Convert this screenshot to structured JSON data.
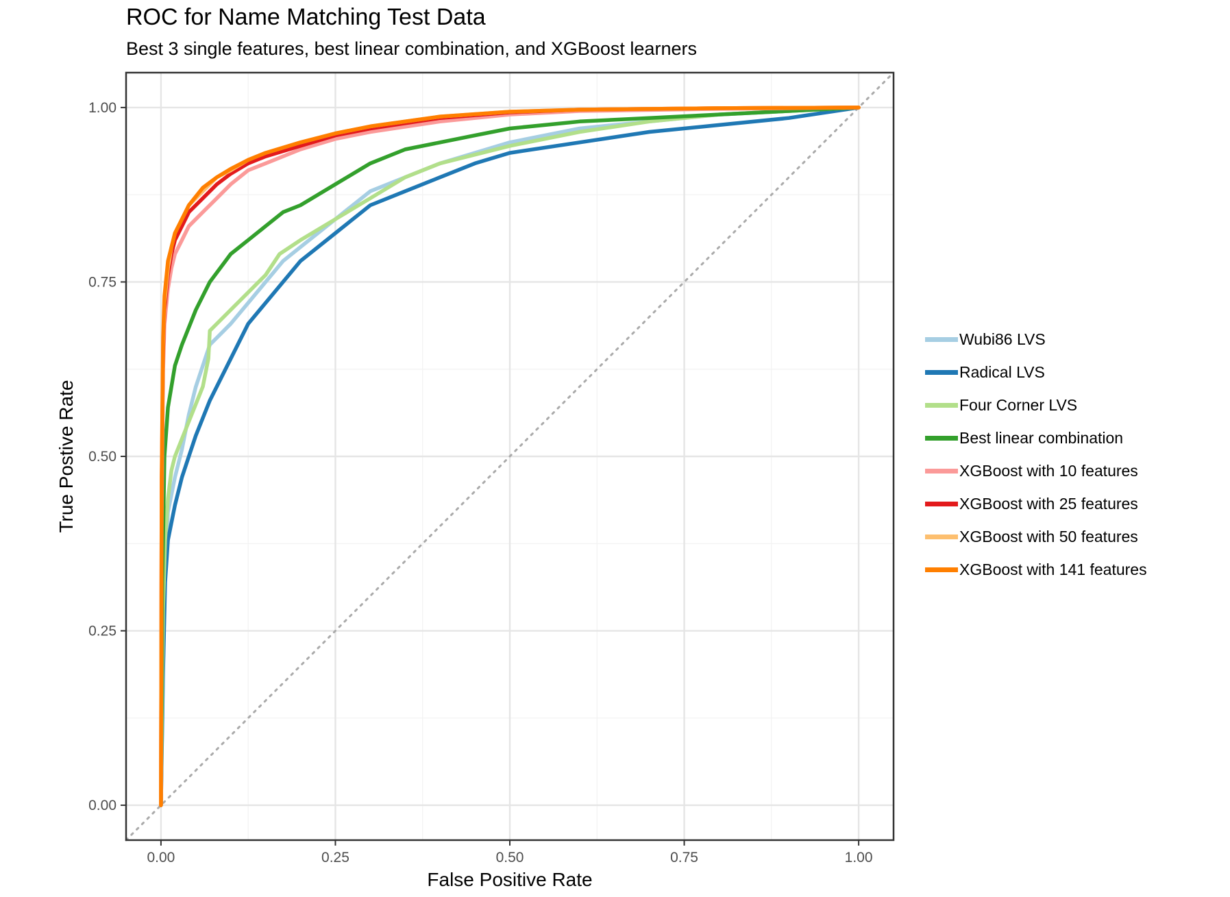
{
  "chart_data": {
    "type": "line",
    "title": "ROC for Name Matching Test Data",
    "subtitle": "Best 3 single features, best linear combination, and XGBoost learners",
    "xlabel": "False Positive Rate",
    "ylabel": "True Postive Rate",
    "xlim": [
      -0.05,
      1.05
    ],
    "ylim": [
      -0.05,
      1.05
    ],
    "x_ticks": [
      "0.00",
      "0.25",
      "0.50",
      "0.75",
      "1.00"
    ],
    "y_ticks": [
      "0.00",
      "0.25",
      "0.50",
      "0.75",
      "1.00"
    ],
    "grid": true,
    "legend_position": "right",
    "diagonal_reference": {
      "from": [
        -0.05,
        -0.05
      ],
      "to": [
        1.05,
        1.05
      ],
      "style": "dotted",
      "color": "#aaaaaa"
    },
    "series": [
      {
        "name": "Wubi86 LVS",
        "color": "#a6cee3",
        "x": [
          0,
          0.003,
          0.006,
          0.01,
          0.02,
          0.03,
          0.04,
          0.05,
          0.06,
          0.07,
          0.08,
          0.1,
          0.125,
          0.15,
          0.175,
          0.2,
          0.25,
          0.3,
          0.35,
          0.4,
          0.5,
          0.6,
          0.7,
          0.8,
          0.9,
          1.0
        ],
        "y": [
          0,
          0.2,
          0.33,
          0.42,
          0.47,
          0.51,
          0.56,
          0.6,
          0.63,
          0.66,
          0.67,
          0.69,
          0.72,
          0.75,
          0.78,
          0.8,
          0.84,
          0.88,
          0.9,
          0.92,
          0.95,
          0.97,
          0.98,
          0.99,
          0.995,
          1.0
        ]
      },
      {
        "name": "Radical LVS",
        "color": "#1f78b4",
        "x": [
          0,
          0.003,
          0.006,
          0.01,
          0.02,
          0.03,
          0.04,
          0.05,
          0.07,
          0.1,
          0.125,
          0.15,
          0.2,
          0.25,
          0.3,
          0.35,
          0.4,
          0.45,
          0.5,
          0.6,
          0.7,
          0.8,
          0.9,
          1.0
        ],
        "y": [
          0,
          0.19,
          0.32,
          0.38,
          0.43,
          0.47,
          0.5,
          0.53,
          0.58,
          0.64,
          0.69,
          0.72,
          0.78,
          0.82,
          0.86,
          0.88,
          0.9,
          0.92,
          0.935,
          0.95,
          0.965,
          0.975,
          0.985,
          1.0
        ]
      },
      {
        "name": "Four Corner LVS",
        "color": "#b2df8a",
        "x": [
          0,
          0.003,
          0.006,
          0.01,
          0.015,
          0.02,
          0.04,
          0.06,
          0.068,
          0.07,
          0.1,
          0.15,
          0.17,
          0.2,
          0.25,
          0.3,
          0.35,
          0.4,
          0.5,
          0.6,
          0.7,
          0.8,
          0.9,
          1.0
        ],
        "y": [
          0,
          0.28,
          0.38,
          0.44,
          0.48,
          0.5,
          0.55,
          0.6,
          0.64,
          0.68,
          0.71,
          0.76,
          0.79,
          0.81,
          0.84,
          0.87,
          0.9,
          0.92,
          0.945,
          0.965,
          0.98,
          0.99,
          0.995,
          1.0
        ]
      },
      {
        "name": "Best linear combination",
        "color": "#33a02c",
        "x": [
          0,
          0.002,
          0.005,
          0.01,
          0.02,
          0.03,
          0.05,
          0.07,
          0.1,
          0.125,
          0.15,
          0.175,
          0.2,
          0.25,
          0.3,
          0.35,
          0.4,
          0.45,
          0.5,
          0.6,
          0.7,
          0.8,
          0.9,
          1.0
        ],
        "y": [
          0,
          0.32,
          0.5,
          0.57,
          0.63,
          0.66,
          0.71,
          0.75,
          0.79,
          0.81,
          0.83,
          0.85,
          0.86,
          0.89,
          0.92,
          0.94,
          0.95,
          0.96,
          0.97,
          0.98,
          0.985,
          0.99,
          0.995,
          1.0
        ]
      },
      {
        "name": "XGBoost with 10 features",
        "color": "#fb9a99",
        "x": [
          0,
          0.001,
          0.003,
          0.005,
          0.01,
          0.015,
          0.02,
          0.03,
          0.04,
          0.06,
          0.08,
          0.1,
          0.125,
          0.15,
          0.2,
          0.25,
          0.3,
          0.4,
          0.5,
          0.6,
          0.8,
          1.0
        ],
        "y": [
          0,
          0.4,
          0.62,
          0.69,
          0.74,
          0.77,
          0.79,
          0.81,
          0.83,
          0.85,
          0.87,
          0.89,
          0.91,
          0.92,
          0.94,
          0.955,
          0.965,
          0.98,
          0.99,
          0.995,
          0.998,
          1.0
        ]
      },
      {
        "name": "XGBoost with 25 features",
        "color": "#e31a1c",
        "x": [
          0,
          0.001,
          0.003,
          0.005,
          0.01,
          0.015,
          0.02,
          0.03,
          0.04,
          0.06,
          0.08,
          0.1,
          0.125,
          0.15,
          0.2,
          0.25,
          0.3,
          0.4,
          0.5,
          0.6,
          0.8,
          1.0
        ],
        "y": [
          0,
          0.45,
          0.65,
          0.71,
          0.76,
          0.79,
          0.81,
          0.83,
          0.85,
          0.87,
          0.89,
          0.905,
          0.92,
          0.93,
          0.945,
          0.96,
          0.97,
          0.985,
          0.993,
          0.997,
          0.999,
          1.0
        ]
      },
      {
        "name": "XGBoost with 50 features",
        "color": "#fdbf6f",
        "x": [
          0,
          0.001,
          0.003,
          0.005,
          0.01,
          0.015,
          0.02,
          0.03,
          0.04,
          0.06,
          0.08,
          0.1,
          0.125,
          0.15,
          0.2,
          0.25,
          0.3,
          0.4,
          0.5,
          0.6,
          0.8,
          1.0
        ],
        "y": [
          0,
          0.46,
          0.66,
          0.72,
          0.77,
          0.8,
          0.82,
          0.84,
          0.86,
          0.88,
          0.9,
          0.91,
          0.925,
          0.935,
          0.95,
          0.963,
          0.973,
          0.987,
          0.994,
          0.997,
          0.999,
          1.0
        ]
      },
      {
        "name": "XGBoost with 141 features",
        "color": "#ff7f00",
        "x": [
          0,
          0.001,
          0.003,
          0.005,
          0.01,
          0.015,
          0.02,
          0.03,
          0.04,
          0.06,
          0.08,
          0.1,
          0.125,
          0.15,
          0.2,
          0.25,
          0.3,
          0.4,
          0.5,
          0.6,
          0.8,
          1.0
        ],
        "y": [
          0,
          0.47,
          0.67,
          0.73,
          0.78,
          0.8,
          0.82,
          0.84,
          0.86,
          0.885,
          0.9,
          0.912,
          0.925,
          0.935,
          0.95,
          0.963,
          0.973,
          0.987,
          0.994,
          0.997,
          0.999,
          1.0
        ]
      }
    ]
  }
}
